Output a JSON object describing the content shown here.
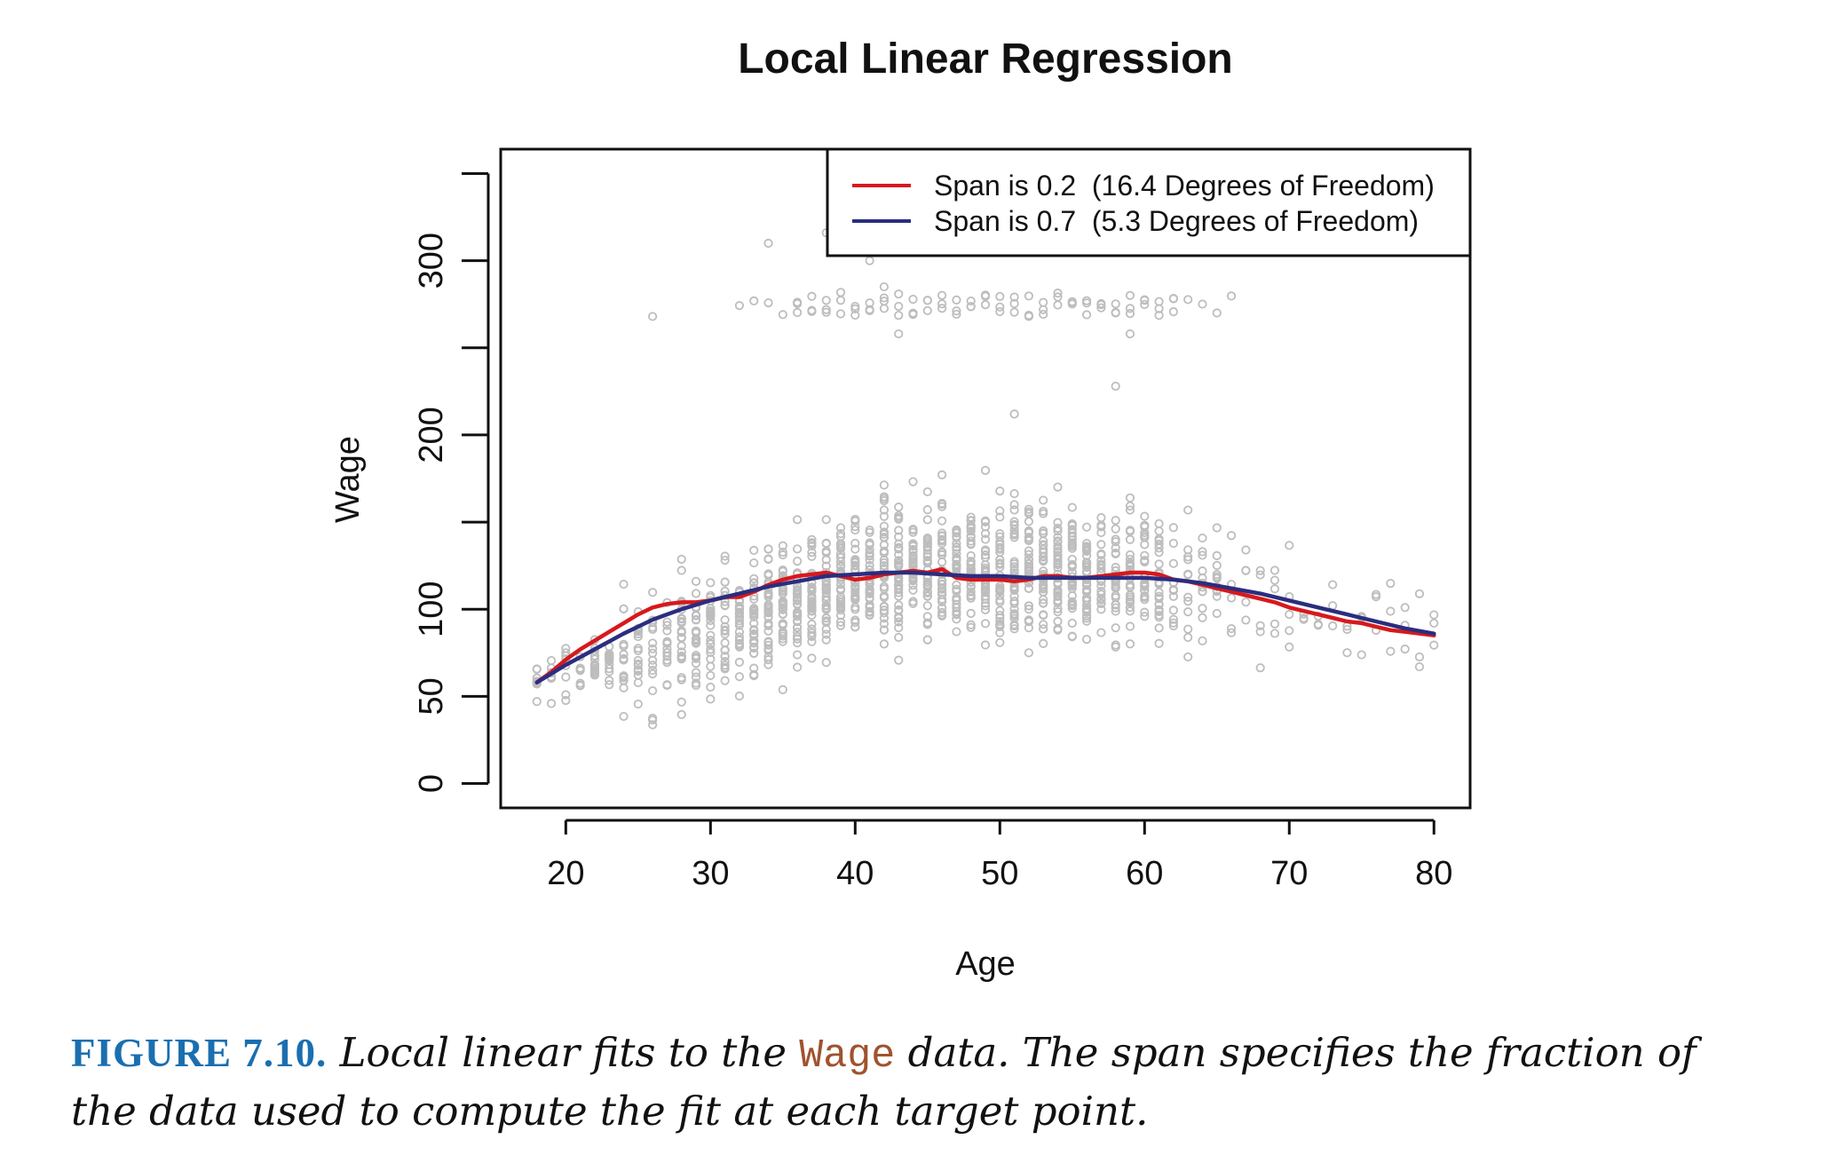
{
  "chart_data": {
    "type": "scatter",
    "title": "Local Linear Regression",
    "xlabel": "Age",
    "ylabel": "Wage",
    "xlim": [
      15.5,
      82.5
    ],
    "ylim": [
      -14,
      364
    ],
    "x_ticks": [
      20,
      30,
      40,
      50,
      60,
      70,
      80
    ],
    "y_ticks": [
      0,
      50,
      100,
      150,
      200,
      250,
      300,
      350
    ],
    "y_tick_labels": [
      "0",
      "50",
      "100",
      "",
      "200",
      "",
      "300",
      ""
    ],
    "grid": false,
    "legend_position": "top-right",
    "points_color": "#bdbdbd",
    "series": [
      {
        "name": "Span is 0.2  (16.4 Degrees of Freedom)",
        "color": "#d7191c",
        "x": [
          18,
          19,
          20,
          21,
          22,
          23,
          24,
          25,
          26,
          27,
          28,
          29,
          30,
          31,
          32,
          33,
          34,
          35,
          36,
          37,
          38,
          39,
          40,
          41,
          42,
          43,
          44,
          45,
          46,
          47,
          48,
          49,
          50,
          51,
          52,
          53,
          54,
          55,
          56,
          57,
          58,
          59,
          60,
          61,
          62,
          63,
          64,
          65,
          66,
          67,
          68,
          69,
          70,
          71,
          72,
          73,
          74,
          75,
          76,
          77,
          78,
          79,
          80
        ],
        "y": [
          58,
          64,
          71,
          77,
          82,
          87,
          92,
          97,
          101,
          103,
          104,
          104,
          105,
          107,
          107,
          110,
          114,
          117,
          119,
          120,
          121,
          119,
          117,
          118,
          120,
          121,
          122,
          121,
          123,
          118,
          117,
          117,
          117,
          116,
          117,
          119,
          119,
          118,
          118,
          119,
          120,
          121,
          121,
          120,
          117,
          116,
          114,
          112,
          110,
          108,
          106,
          104,
          101,
          99,
          97,
          95,
          93,
          92,
          90,
          88,
          87,
          86,
          85
        ]
      },
      {
        "name": "Span is 0.7  (5.3 Degrees of Freedom)",
        "color": "#2b2d7f",
        "x": [
          18,
          20,
          22,
          24,
          26,
          28,
          30,
          32,
          34,
          36,
          38,
          40,
          42,
          44,
          46,
          48,
          50,
          52,
          54,
          56,
          58,
          60,
          62,
          64,
          66,
          68,
          70,
          72,
          74,
          76,
          78,
          80
        ],
        "y": [
          58,
          68,
          77,
          86,
          94,
          100,
          105,
          109,
          113,
          116,
          119,
          120,
          121,
          121,
          120,
          119,
          119,
          118,
          118,
          118,
          118,
          118,
          117,
          115,
          112,
          109,
          105,
          101,
          97,
          93,
          89,
          86
        ]
      }
    ],
    "scatter_note_count": 0
  },
  "caption": {
    "label": "FIGURE 7.10.",
    "text_before": " Local linear fits to the ",
    "code": "Wage",
    "text_after": " data. The span specifies the fraction of the data used to compute the fit at each target point."
  }
}
